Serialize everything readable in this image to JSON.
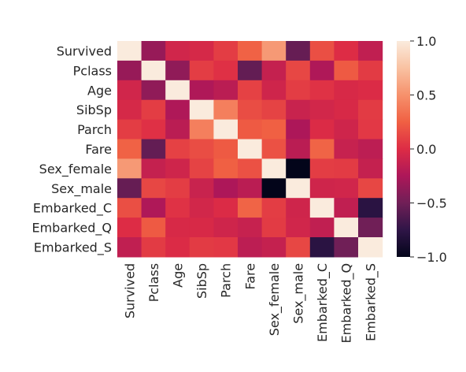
{
  "chart_data": {
    "type": "heatmap",
    "title": "",
    "xlabel": "",
    "ylabel": "",
    "categories": [
      "Survived",
      "Pclass",
      "Age",
      "SibSp",
      "Parch",
      "Fare",
      "Sex_female",
      "Sex_male",
      "Embarked_C",
      "Embarked_Q",
      "Embarked_S"
    ],
    "values": [
      [
        1.0,
        -0.34,
        -0.07,
        -0.04,
        0.08,
        0.26,
        0.54,
        -0.54,
        0.17,
        0.0,
        -0.15
      ],
      [
        -0.34,
        1.0,
        -0.37,
        0.08,
        0.02,
        -0.55,
        -0.13,
        0.13,
        -0.24,
        0.22,
        0.07
      ],
      [
        -0.07,
        -0.37,
        1.0,
        -0.24,
        -0.18,
        0.1,
        -0.08,
        0.08,
        0.03,
        -0.03,
        -0.01
      ],
      [
        -0.04,
        0.08,
        -0.24,
        1.0,
        0.41,
        0.16,
        0.11,
        -0.11,
        -0.06,
        -0.03,
        0.07
      ],
      [
        0.08,
        0.02,
        -0.18,
        0.41,
        1.0,
        0.22,
        0.25,
        -0.25,
        -0.01,
        -0.08,
        0.06
      ],
      [
        0.26,
        -0.55,
        0.1,
        0.16,
        0.22,
        1.0,
        0.18,
        -0.18,
        0.27,
        -0.12,
        -0.17
      ],
      [
        0.54,
        -0.13,
        -0.08,
        0.11,
        0.25,
        0.18,
        1.0,
        -1.0,
        0.08,
        0.07,
        -0.13
      ],
      [
        -0.54,
        0.13,
        0.08,
        -0.11,
        -0.25,
        -0.18,
        -1.0,
        1.0,
        -0.08,
        -0.07,
        0.13
      ],
      [
        0.17,
        -0.24,
        0.03,
        -0.06,
        -0.01,
        0.27,
        0.08,
        -0.08,
        1.0,
        -0.15,
        -0.78
      ],
      [
        0.0,
        0.22,
        -0.03,
        -0.03,
        -0.08,
        -0.12,
        0.07,
        -0.07,
        -0.15,
        1.0,
        -0.5
      ],
      [
        -0.15,
        0.07,
        -0.01,
        0.07,
        0.06,
        -0.17,
        -0.13,
        0.13,
        -0.78,
        -0.5,
        1.0
      ]
    ],
    "colorbar": {
      "range": [
        -1.0,
        1.0
      ],
      "ticks": [
        1.0,
        0.5,
        0.0,
        -0.5,
        -1.0
      ],
      "tick_labels": [
        "1.0",
        "0.5",
        "0.0",
        "−0.5",
        "−1.0"
      ]
    },
    "grid": false
  }
}
